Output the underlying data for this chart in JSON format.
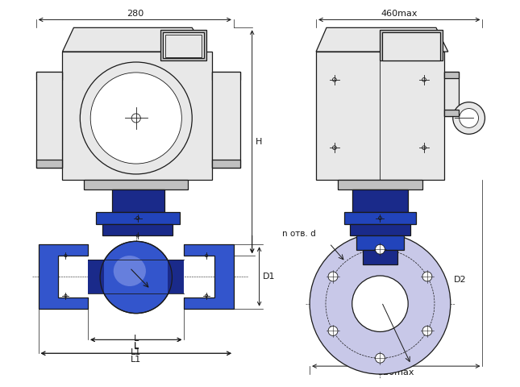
{
  "bg_color": "#ffffff",
  "line_color": "#1a1a1a",
  "blue_dark": "#1a2a8a",
  "blue_mid": "#2244bb",
  "blue_body": "#3355cc",
  "blue_light": "#99aaee",
  "blue_flange": "#2233aa",
  "blue_neck": "#2233aa",
  "grey_body": "#d8d8d8",
  "grey_light": "#e8e8e8",
  "grey_mid": "#c0c0c0",
  "purple_flange": "#c8c8e8",
  "white": "#ffffff",
  "dim_280": "280",
  "dim_460max": "460max",
  "dim_H": "H",
  "dim_D1": "D1",
  "dim_D2": "D2",
  "dim_L": "L",
  "dim_L1": "L1",
  "dim_notv_d": "n отв. d",
  "dim_320max": "320max"
}
